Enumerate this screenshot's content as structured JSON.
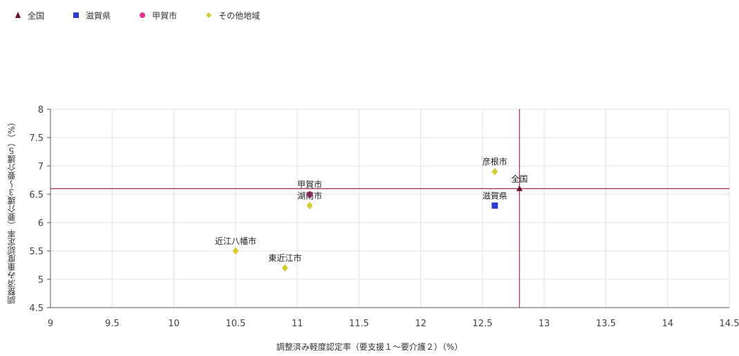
{
  "legend": [
    {
      "label": "全国",
      "marker": "triangle",
      "color": "#6b0f2b"
    },
    {
      "label": "滋賀県",
      "marker": "square",
      "color": "#2b3ccf"
    },
    {
      "label": "甲賀市",
      "marker": "circle",
      "color": "#e8318a"
    },
    {
      "label": "その他地域",
      "marker": "diamond",
      "color": "#d4cc33"
    }
  ],
  "chart_data": {
    "type": "scatter",
    "xlabel": "調整済み軽度認定率（要支援１～要介護２）（%）",
    "ylabel": "調整済み重度認定率（要介護３～要介護５）（%）",
    "xlim": [
      9,
      14.5
    ],
    "ylim": [
      4.5,
      8
    ],
    "xticks": [
      "9",
      "9.5",
      "10",
      "10.5",
      "11",
      "11.5",
      "12",
      "12.5",
      "13",
      "13.5",
      "14",
      "14.5"
    ],
    "yticks": [
      "4.5",
      "5",
      "5.5",
      "6",
      "6.5",
      "7",
      "7.5",
      "8"
    ],
    "grid": true,
    "reference_lines": {
      "x": 12.8,
      "y": 6.6,
      "color": "#a33a55"
    },
    "series": [
      {
        "name": "全国",
        "marker": "triangle",
        "color": "#6b0f2b",
        "points": [
          {
            "x": 12.8,
            "y": 6.6,
            "label": "全国"
          }
        ]
      },
      {
        "name": "滋賀県",
        "marker": "square",
        "color": "#2b3ccf",
        "points": [
          {
            "x": 12.6,
            "y": 6.3,
            "label": "滋賀県"
          }
        ]
      },
      {
        "name": "甲賀市",
        "marker": "circle",
        "color": "#e8318a",
        "points": [
          {
            "x": 11.1,
            "y": 6.5,
            "label": "甲賀市"
          }
        ]
      },
      {
        "name": "その他地域",
        "marker": "diamond",
        "color": "#d4cc33",
        "points": [
          {
            "x": 12.6,
            "y": 6.9,
            "label": "彦根市"
          },
          {
            "x": 11.1,
            "y": 6.3,
            "label": "湖南市"
          },
          {
            "x": 10.5,
            "y": 5.5,
            "label": "近江八幡市"
          },
          {
            "x": 10.9,
            "y": 5.2,
            "label": "東近江市"
          }
        ]
      }
    ]
  }
}
